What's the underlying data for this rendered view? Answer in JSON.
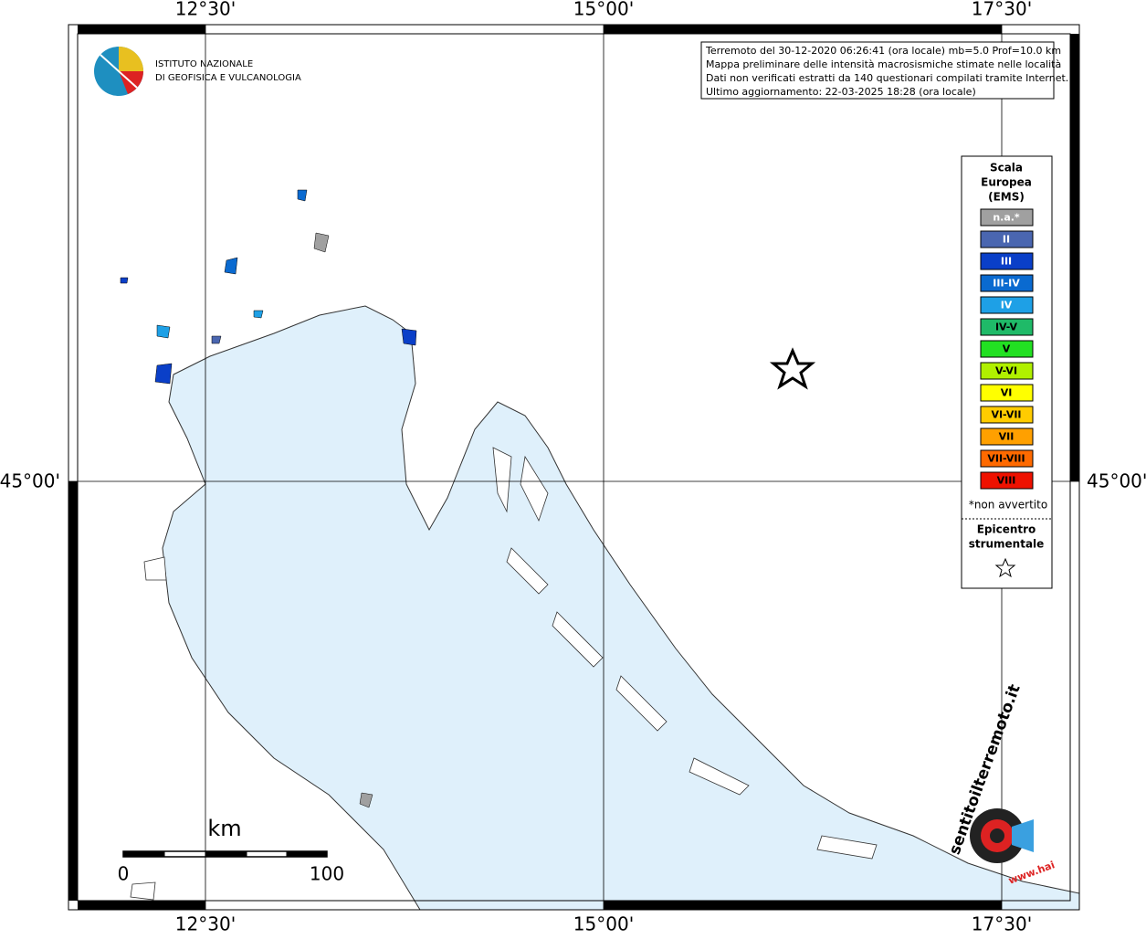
{
  "header": {
    "lines": [
      "Terremoto del 30-12-2020 06:26:41 (ora locale) mb=5.0 Prof=10.0 km",
      "Mappa preliminare delle intensità macrosismiche stimate nelle località",
      "Dati non verificati estratti da 140 questionari compilati tramite Internet.",
      "Ultimo aggiornamento: 22-03-2025 18:28 (ora locale)"
    ]
  },
  "logo": {
    "lines": [
      "ISTITUTO NAZIONALE",
      "DI GEOFISICA E VULCANOLOGIA"
    ]
  },
  "badge": {
    "text": "sentitoilterremoto.it",
    "www": "www.hai"
  },
  "axes": {
    "longitudes": [
      "12°30'",
      "15°00'",
      "17°30'"
    ],
    "latitude": "45°00'"
  },
  "legend": {
    "title": [
      "Scala",
      "Europea",
      "(EMS)"
    ],
    "items": [
      {
        "label": "n.a.*",
        "color": "#a0a0a0"
      },
      {
        "label": "II",
        "color": "#4a66b0"
      },
      {
        "label": "III",
        "color": "#0a3fc8"
      },
      {
        "label": "III-IV",
        "color": "#0a6ad0"
      },
      {
        "label": "IV",
        "color": "#1ea0e6"
      },
      {
        "label": "IV-V",
        "color": "#1fba68"
      },
      {
        "label": "V",
        "color": "#22e022"
      },
      {
        "label": "V-VI",
        "color": "#b0f000"
      },
      {
        "label": "VI",
        "color": "#ffff00"
      },
      {
        "label": "VI-VII",
        "color": "#ffcc00"
      },
      {
        "label": "VII",
        "color": "#ffa000"
      },
      {
        "label": "VII-VIII",
        "color": "#ff6a00"
      },
      {
        "label": "VIII",
        "color": "#ee1100"
      }
    ],
    "note": "*non avvertito",
    "epicenter": [
      "Epicentro",
      "strumentale"
    ]
  },
  "scale_bar": {
    "unit": "km",
    "labels": [
      "0",
      "100"
    ]
  }
}
